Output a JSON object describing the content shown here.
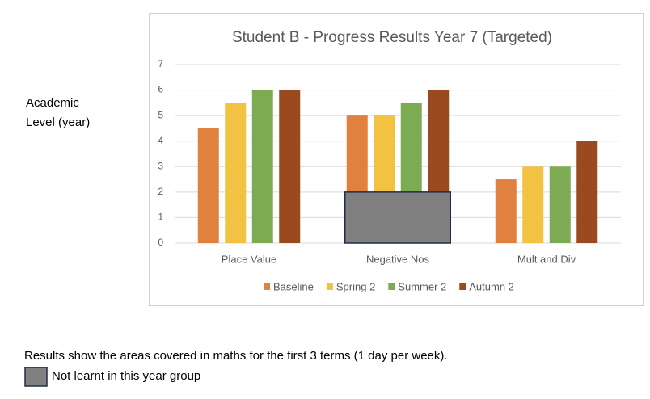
{
  "chart_data": {
    "type": "bar",
    "title": "Student B - Progress Results  Year 7 (Targeted)",
    "ylabel": "Academic Level (year)",
    "categories": [
      "Place Value",
      "Negative Nos",
      "Mult and Div"
    ],
    "series": [
      {
        "name": "Baseline",
        "color": "#e0813f",
        "values": [
          4.5,
          5,
          2.5
        ]
      },
      {
        "name": "Spring 2",
        "color": "#f4c242",
        "values": [
          5.5,
          5,
          3
        ]
      },
      {
        "name": "Summer 2",
        "color": "#7dab54",
        "values": [
          6,
          5.5,
          3
        ]
      },
      {
        "name": "Autumn 2",
        "color": "#9b4a1f",
        "values": [
          6,
          6,
          4
        ]
      }
    ],
    "ylim": [
      0,
      7
    ],
    "yticks": [
      0,
      1,
      2,
      3,
      4,
      5,
      6,
      7
    ],
    "grid": true,
    "legend": "bottom",
    "shaded_region": {
      "category": "Negative Nos",
      "range": [
        0,
        2
      ],
      "color": "#808080",
      "label": "Not learnt in this year group"
    },
    "note": "Results show the areas covered in maths for the first 3 terms (1 day per week)."
  }
}
